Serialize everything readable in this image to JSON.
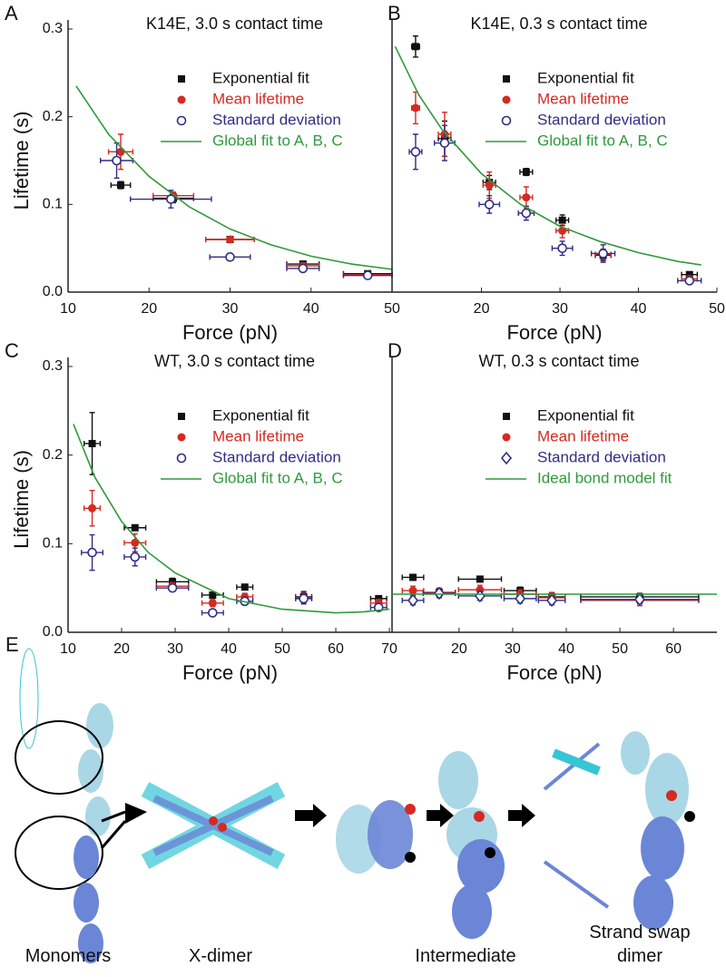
{
  "chart_data": [
    {
      "type": "scatter",
      "panel_label": "A",
      "title": "K14E, 3.0 s contact time",
      "xlabel": "Force (pN)",
      "ylabel": "Lifetime (s)",
      "legend": "upper right",
      "xlim": [
        10,
        50
      ],
      "ylim": [
        0,
        0.3
      ],
      "xticks": [
        10,
        20,
        30,
        40,
        50
      ],
      "yticks": [
        {
          "value": 0,
          "label": "0.0"
        },
        0.1,
        0.2,
        0.3
      ],
      "series": [
        {
          "name": "Exponential fit",
          "color": "#111111",
          "marker": "square",
          "x": [
            16.5,
            23,
            30,
            39,
            47
          ],
          "values": [
            0.122,
            0.107,
            0.06,
            0.032,
            0.021
          ],
          "xerr": [
            1.2,
            2.5,
            3,
            2,
            3
          ],
          "yerr": [
            0.004,
            0.005,
            0.003,
            0.003,
            0.003
          ]
        },
        {
          "name": "Mean lifetime",
          "color": "#d42a22",
          "marker": "circle",
          "x": [
            16.5,
            23,
            30,
            39,
            47
          ],
          "values": [
            0.16,
            0.11,
            0.06,
            0.03,
            0.02
          ],
          "xerr": [
            1.5,
            2.5,
            3,
            2,
            3
          ],
          "yerr": [
            0.02,
            0.004,
            0.003,
            0.003,
            0.003
          ]
        },
        {
          "name": "Standard deviation",
          "color": "#2e2e86",
          "marker": "open-circle",
          "x": [
            16,
            22.7,
            30,
            39,
            47
          ],
          "values": [
            0.15,
            0.106,
            0.04,
            0.027,
            0.019
          ],
          "xerr": [
            2,
            5,
            2.5,
            2,
            3
          ],
          "yerr": [
            0.02,
            0.01,
            0.004,
            0.004,
            0.003
          ]
        },
        {
          "name": "Global fit to A, B, C",
          "color": "#2f9a3c",
          "marker": "line",
          "x": [
            11,
            15,
            20,
            25,
            30,
            35,
            40,
            45,
            50
          ],
          "values": [
            0.235,
            0.18,
            0.132,
            0.097,
            0.072,
            0.054,
            0.041,
            0.032,
            0.026
          ]
        }
      ]
    },
    {
      "type": "scatter",
      "panel_label": "B",
      "title": "K14E, 0.3 s contact time",
      "xlabel": "Force (pN)",
      "legend": "upper right",
      "xlim": [
        8.6,
        50
      ],
      "ylim": [
        0,
        0.3
      ],
      "xticks": [
        20,
        30,
        40,
        50
      ],
      "yticks": [],
      "series": [
        {
          "name": "Exponential fit",
          "color": "#111111",
          "marker": "square",
          "x": [
            11.6,
            15.3,
            21,
            25.7,
            30.3,
            35.5,
            46.5
          ],
          "values": [
            0.28,
            0.175,
            0.125,
            0.137,
            0.082,
            0.042,
            0.02
          ],
          "xerr": [
            0.5,
            0.8,
            0.8,
            0.8,
            0.8,
            1,
            1
          ],
          "yerr": [
            0.012,
            0.02,
            0.008,
            0.004,
            0.006,
            0.006,
            0.003
          ]
        },
        {
          "name": "Mean lifetime",
          "color": "#d42a22",
          "marker": "circle",
          "x": [
            11.6,
            15.3,
            21,
            25.7,
            30.3,
            35.5,
            46.5
          ],
          "values": [
            0.21,
            0.18,
            0.122,
            0.108,
            0.07,
            0.043,
            0.015
          ],
          "xerr": [
            0.5,
            0.8,
            0.8,
            0.8,
            0.8,
            1,
            1
          ],
          "yerr": [
            0.018,
            0.025,
            0.015,
            0.012,
            0.008,
            0.006,
            0.003
          ]
        },
        {
          "name": "Standard deviation",
          "color": "#2e2e86",
          "marker": "open-circle",
          "x": [
            11.6,
            15.3,
            21,
            25.7,
            30.3,
            35.5,
            46.5
          ],
          "values": [
            0.16,
            0.17,
            0.1,
            0.09,
            0.05,
            0.044,
            0.013
          ],
          "xerr": [
            0.8,
            1.3,
            1.3,
            1,
            1.3,
            1.5,
            1.5
          ],
          "yerr": [
            0.02,
            0.02,
            0.01,
            0.008,
            0.008,
            0.01,
            0.003
          ]
        },
        {
          "name": "Global fit to A, B, C",
          "color": "#2f9a3c",
          "marker": "line",
          "x": [
            9,
            12,
            15,
            20,
            25,
            30,
            35,
            40,
            45,
            48
          ],
          "values": [
            0.28,
            0.225,
            0.185,
            0.135,
            0.1,
            0.075,
            0.058,
            0.045,
            0.035,
            0.031
          ]
        }
      ]
    },
    {
      "type": "scatter",
      "panel_label": "C",
      "title": "WT, 3.0 s contact time",
      "xlabel": "Force (pN)",
      "ylabel": "Lifetime (s)",
      "legend": "upper right",
      "xlim": [
        10,
        70.5
      ],
      "ylim": [
        0,
        0.3
      ],
      "xticks": [
        10,
        20,
        30,
        40,
        50,
        60,
        70
      ],
      "yticks": [
        {
          "value": 0,
          "label": "0.0"
        },
        0.1,
        0.2,
        0.3
      ],
      "series": [
        {
          "name": "Exponential fit",
          "color": "#111111",
          "marker": "square",
          "x": [
            14.5,
            22.5,
            29.5,
            37,
            43,
            54,
            68
          ],
          "values": [
            0.213,
            0.118,
            0.057,
            0.042,
            0.051,
            0.04,
            0.038
          ],
          "xerr": [
            1.5,
            2,
            3,
            2,
            1.5,
            1.5,
            1.5
          ],
          "yerr": [
            0.035,
            0.003,
            0.004,
            0.003,
            0.003,
            0.006,
            0.003
          ]
        },
        {
          "name": "Mean lifetime",
          "color": "#d42a22",
          "marker": "circle",
          "x": [
            14.5,
            22.5,
            29.5,
            37,
            43,
            54,
            68
          ],
          "values": [
            0.14,
            0.101,
            0.052,
            0.033,
            0.04,
            0.039,
            0.033
          ],
          "xerr": [
            1.5,
            2,
            3,
            2,
            1.5,
            1.5,
            1.5
          ],
          "yerr": [
            0.02,
            0.01,
            0.004,
            0.004,
            0.004,
            0.006,
            0.004
          ]
        },
        {
          "name": "Standard deviation",
          "color": "#2e2e86",
          "marker": "open-circle",
          "x": [
            14.5,
            22.5,
            29.5,
            37,
            43,
            54,
            68
          ],
          "values": [
            0.09,
            0.085,
            0.05,
            0.022,
            0.035,
            0.038,
            0.028
          ],
          "xerr": [
            2,
            2,
            3,
            2,
            1.5,
            1.5,
            1.5
          ],
          "yerr": [
            0.02,
            0.01,
            0.004,
            0.003,
            0.004,
            0.006,
            0.004
          ]
        },
        {
          "name": "Global fit to A, B, C",
          "color": "#2f9a3c",
          "marker": "line",
          "x": [
            11,
            15,
            20,
            25,
            30,
            40,
            50,
            60,
            65,
            70
          ],
          "values": [
            0.235,
            0.175,
            0.125,
            0.09,
            0.067,
            0.038,
            0.026,
            0.022,
            0.023,
            0.026
          ]
        }
      ]
    },
    {
      "type": "scatter",
      "panel_label": "D",
      "title": "WT, 0.3 s contact time",
      "xlabel": "Force (pN)",
      "legend": "upper right",
      "xlim": [
        7.5,
        68.1
      ],
      "ylim": [
        0,
        0.3
      ],
      "xticks": [
        20,
        30,
        40,
        50,
        60
      ],
      "yticks": [],
      "series": [
        {
          "name": "Exponential fit",
          "color": "#111111",
          "marker": "square",
          "x": [
            11.4,
            16.3,
            23.9,
            31.4,
            37.3,
            53.7
          ],
          "values": [
            0.062,
            0.045,
            0.06,
            0.047,
            0.04,
            0.04
          ],
          "xerr": [
            2,
            3,
            4,
            3,
            2.5,
            11
          ],
          "yerr": [
            0.003,
            0.003,
            0.003,
            0.004,
            0.004,
            0.004
          ]
        },
        {
          "name": "Mean lifetime",
          "color": "#d42a22",
          "marker": "circle",
          "x": [
            11.4,
            16.3,
            23.9,
            31.4,
            37.3,
            53.7
          ],
          "values": [
            0.047,
            0.045,
            0.048,
            0.043,
            0.039,
            0.036
          ],
          "xerr": [
            2,
            3,
            4,
            3,
            2.5,
            11
          ],
          "yerr": [
            0.005,
            0.005,
            0.005,
            0.005,
            0.006,
            0.006
          ]
        },
        {
          "name": "Standard deviation",
          "color": "#2e2e86",
          "marker": "open-diamond",
          "x": [
            11.4,
            16.3,
            23.9,
            31.4,
            37.3,
            53.7
          ],
          "values": [
            0.036,
            0.044,
            0.041,
            0.038,
            0.036,
            0.037
          ],
          "xerr": [
            2,
            3,
            4,
            3,
            2.5,
            11
          ],
          "yerr": [
            0.005,
            0.005,
            0.005,
            0.005,
            0.005,
            0.005
          ]
        },
        {
          "name": "Ideal bond model fit",
          "color": "#2f9a3c",
          "marker": "line",
          "x": [
            7.5,
            68.1
          ],
          "values": [
            0.043,
            0.043
          ]
        }
      ]
    }
  ],
  "panel_e": {
    "label": "E",
    "stages": [
      "Monomers",
      "X-dimer",
      "Intermediate",
      "Strand swap dimer"
    ]
  }
}
